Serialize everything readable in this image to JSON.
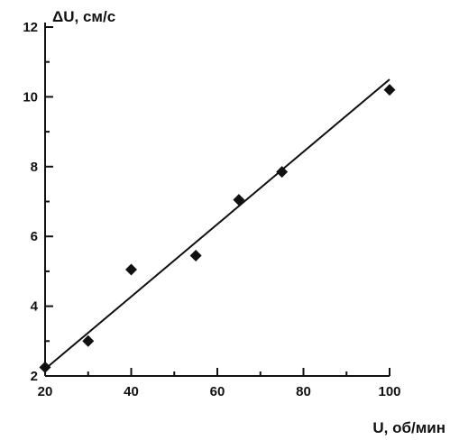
{
  "chart_data": {
    "type": "scatter",
    "xlabel": "U, об/мин",
    "ylabel": "ΔU, см/с",
    "xlim": [
      20,
      100
    ],
    "ylim": [
      2,
      12
    ],
    "xticks": [
      20,
      40,
      60,
      80,
      100
    ],
    "yticks": [
      2,
      4,
      6,
      8,
      10,
      12
    ],
    "grid": false,
    "series": [
      {
        "marker": "diamond",
        "x": [
          20,
          30,
          40,
          55,
          65,
          75,
          100
        ],
        "y": [
          2.25,
          3.0,
          5.05,
          5.45,
          7.05,
          7.85,
          10.2
        ]
      }
    ],
    "fit_line": {
      "x": [
        20,
        100
      ],
      "y": [
        2.2,
        10.5
      ]
    },
    "colors": {
      "marks": "#111111",
      "axes": "#111111"
    }
  }
}
